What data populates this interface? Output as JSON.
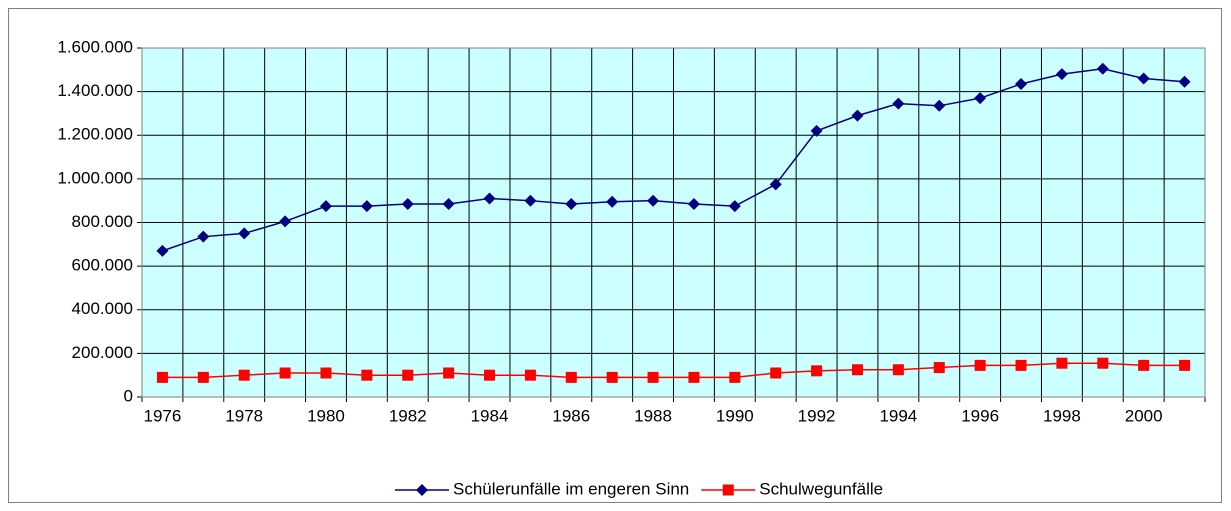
{
  "chart_data": {
    "type": "line",
    "categories": [
      "1976",
      null,
      "1978",
      null,
      "1980",
      null,
      "1982",
      null,
      "1984",
      null,
      "1986",
      null,
      "1988",
      null,
      "1990",
      null,
      "1992",
      null,
      "1994",
      null,
      "1996",
      null,
      "1998",
      null,
      "2000",
      null
    ],
    "series": [
      {
        "name": "Schülerunfälle im engeren Sinn",
        "color": "#000080",
        "marker": "diamond",
        "values": [
          670000,
          735000,
          750000,
          805000,
          875000,
          875000,
          885000,
          885000,
          910000,
          900000,
          885000,
          895000,
          900000,
          885000,
          875000,
          975000,
          1220000,
          1290000,
          1345000,
          1335000,
          1370000,
          1435000,
          1480000,
          1505000,
          1460000,
          1445000
        ]
      },
      {
        "name": "Schulwegunfälle",
        "color": "#ff0000",
        "marker": "square",
        "values": [
          90000,
          90000,
          100000,
          110000,
          110000,
          100000,
          100000,
          110000,
          100000,
          100000,
          90000,
          90000,
          90000,
          90000,
          90000,
          110000,
          120000,
          125000,
          125000,
          135000,
          145000,
          145000,
          155000,
          155000,
          145000,
          145000
        ]
      }
    ],
    "ylim": [
      0,
      1600000
    ],
    "yticks": [
      0,
      {
        "value": 200000,
        "label": "200.000"
      },
      {
        "value": 400000,
        "label": "400.000"
      },
      {
        "value": 600000,
        "label": "600.000"
      },
      {
        "value": 800000,
        "label": "800.000"
      },
      {
        "value": 1000000,
        "label": "1.000.000"
      },
      {
        "value": 1200000,
        "label": "1.200.000"
      },
      {
        "value": 1400000,
        "label": "1.400.000"
      },
      {
        "value": 1600000,
        "label": "1.600.000"
      }
    ],
    "grid": true,
    "plot_background": "#ccffff",
    "legend": "bottom"
  }
}
